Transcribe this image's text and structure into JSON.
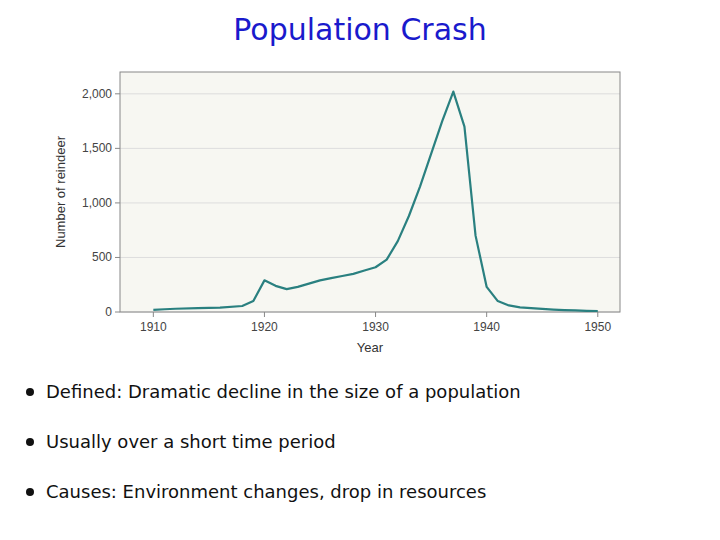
{
  "chart_data": {
    "type": "line",
    "title": "Population Crash",
    "x_label": "Year",
    "y_label": "Number of reindeer",
    "x": [
      1910,
      1911,
      1912,
      1914,
      1916,
      1918,
      1919,
      1920,
      1921,
      1922,
      1923,
      1924,
      1925,
      1926,
      1927,
      1928,
      1929,
      1930,
      1931,
      1932,
      1933,
      1934,
      1935,
      1936,
      1937,
      1938,
      1939,
      1940,
      1941,
      1942,
      1943,
      1944,
      1945,
      1946,
      1947,
      1948,
      1949,
      1950
    ],
    "values": [
      20,
      25,
      30,
      35,
      40,
      55,
      100,
      290,
      240,
      210,
      230,
      260,
      290,
      310,
      330,
      350,
      380,
      410,
      480,
      650,
      880,
      1150,
      1450,
      1750,
      2020,
      1700,
      700,
      230,
      100,
      60,
      42,
      35,
      28,
      22,
      18,
      14,
      10,
      8
    ],
    "color": "#2a8080",
    "xlim": [
      1907,
      1952
    ],
    "xticks": [
      1910,
      1920,
      1930,
      1940,
      1950
    ],
    "ylim": [
      0,
      2200
    ],
    "yticks": [
      0,
      500,
      {
        "value": 1000,
        "label": "1,000"
      },
      {
        "value": 1500,
        "label": "1,500"
      },
      {
        "value": 2000,
        "label": "2,000"
      }
    ],
    "grid": true,
    "annotations": [
      "Defined: Dramatic decline in the size of a population",
      "Usually over a short time period",
      "Causes: Environment changes, drop in resources"
    ]
  }
}
